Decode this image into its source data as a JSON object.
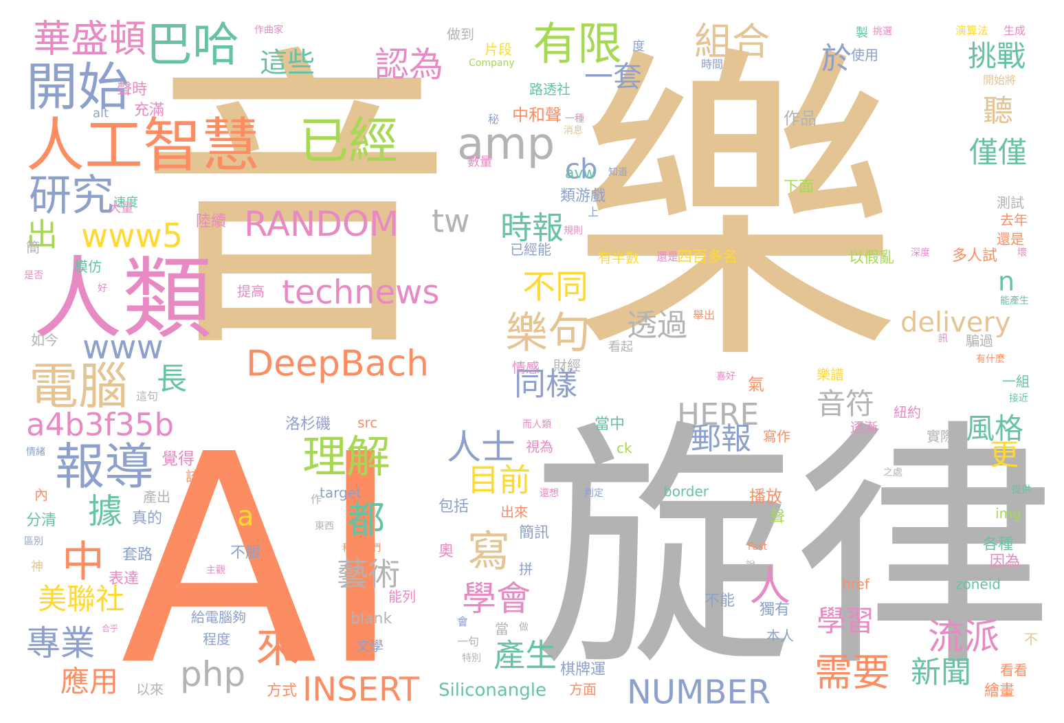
{
  "palette": {
    "tan": "#e5c494",
    "gray": "#b3b3b3",
    "orange": "#fc8d62",
    "pink": "#e78ac3",
    "blue": "#8da0cb",
    "green": "#a6d854",
    "teal": "#66c2a5",
    "yellow": "#ffd92f"
  },
  "words": [
    {
      "text": "音",
      "color": "tan"
    },
    {
      "text": "樂",
      "color": "tan"
    },
    {
      "text": "AI",
      "color": "orange"
    },
    {
      "text": "旋律",
      "color": "gray"
    },
    {
      "text": "人類",
      "color": "pink"
    },
    {
      "text": "人工智慧",
      "color": "orange"
    },
    {
      "text": "開始",
      "color": "blue"
    },
    {
      "text": "巴哈",
      "color": "teal"
    },
    {
      "text": "華盛頓",
      "color": "pink"
    },
    {
      "text": "研究",
      "color": "blue"
    },
    {
      "text": "電腦",
      "color": "tan"
    },
    {
      "text": "報導",
      "color": "blue"
    },
    {
      "text": "a4b3f35b",
      "color": "pink"
    },
    {
      "text": "www",
      "color": "blue"
    },
    {
      "text": "www5",
      "color": "yellow"
    },
    {
      "text": "出",
      "color": "green"
    },
    {
      "text": "已經",
      "color": "green"
    },
    {
      "text": "amp",
      "color": "gray"
    },
    {
      "text": "有限",
      "color": "green"
    },
    {
      "text": "這些",
      "color": "teal"
    },
    {
      "text": "認為",
      "color": "pink"
    },
    {
      "text": "組合",
      "color": "tan"
    },
    {
      "text": "於",
      "color": "blue"
    },
    {
      "text": "挑戰",
      "color": "teal"
    },
    {
      "text": "一套",
      "color": "blue"
    },
    {
      "text": "RANDOM",
      "color": "pink"
    },
    {
      "text": "technews",
      "color": "pink"
    },
    {
      "text": "DeepBach",
      "color": "orange"
    },
    {
      "text": "tw",
      "color": "gray"
    },
    {
      "text": "cb",
      "color": "blue"
    },
    {
      "text": "時報",
      "color": "teal"
    },
    {
      "text": "不同",
      "color": "yellow"
    },
    {
      "text": "樂句",
      "color": "tan"
    },
    {
      "text": "透過",
      "color": "gray"
    },
    {
      "text": "delivery",
      "color": "tan"
    },
    {
      "text": "聽",
      "color": "tan"
    },
    {
      "text": "僅僅",
      "color": "teal"
    },
    {
      "text": "n",
      "color": "teal"
    },
    {
      "text": "同樣",
      "color": "blue"
    },
    {
      "text": "HERE",
      "color": "gray"
    },
    {
      "text": "音符",
      "color": "gray"
    },
    {
      "text": "風格",
      "color": "teal"
    },
    {
      "text": "郵報",
      "color": "blue"
    },
    {
      "text": "理解",
      "color": "green"
    },
    {
      "text": "人士",
      "color": "blue"
    },
    {
      "text": "目前",
      "color": "yellow"
    },
    {
      "text": "寫",
      "color": "tan"
    },
    {
      "text": "都",
      "color": "teal"
    },
    {
      "text": "a",
      "color": "yellow"
    },
    {
      "text": "藝術",
      "color": "gray"
    },
    {
      "text": "學會",
      "color": "pink"
    },
    {
      "text": "人",
      "color": "pink"
    },
    {
      "text": "流派",
      "color": "pink"
    },
    {
      "text": "學習",
      "color": "pink"
    },
    {
      "text": "需要",
      "color": "orange"
    },
    {
      "text": "新聞",
      "color": "teal"
    },
    {
      "text": "更",
      "color": "yellow"
    },
    {
      "text": "中",
      "color": "orange"
    },
    {
      "text": "據",
      "color": "teal"
    },
    {
      "text": "長",
      "color": "teal"
    },
    {
      "text": "美聯社",
      "color": "yellow"
    },
    {
      "text": "專業",
      "color": "blue"
    },
    {
      "text": "應用",
      "color": "orange"
    },
    {
      "text": "來",
      "color": "orange"
    },
    {
      "text": "php",
      "color": "gray"
    },
    {
      "text": "INSERT",
      "color": "orange"
    },
    {
      "text": "產生",
      "color": "teal"
    },
    {
      "text": "NUMBER",
      "color": "blue"
    },
    {
      "text": "Siliconangle",
      "color": "teal"
    },
    {
      "text": "棋牌運",
      "color": "blue"
    },
    {
      "text": "作曲家",
      "color": "pink"
    },
    {
      "text": "做到",
      "color": "gray"
    },
    {
      "text": "片段",
      "color": "yellow"
    },
    {
      "text": "Company",
      "color": "green"
    },
    {
      "text": "度",
      "color": "blue"
    },
    {
      "text": "製",
      "color": "teal"
    },
    {
      "text": "挑選",
      "color": "pink"
    },
    {
      "text": "時間",
      "color": "blue"
    },
    {
      "text": "使用",
      "color": "blue"
    },
    {
      "text": "演算法",
      "color": "yellow"
    },
    {
      "text": "生成",
      "color": "pink"
    },
    {
      "text": "開始將",
      "color": "tan"
    },
    {
      "text": "聲時",
      "color": "pink"
    },
    {
      "text": "充滿",
      "color": "pink"
    },
    {
      "text": "alt",
      "color": "blue"
    },
    {
      "text": "路透社",
      "color": "teal"
    },
    {
      "text": "中和聲",
      "color": "orange"
    },
    {
      "text": "一種",
      "color": "pink"
    },
    {
      "text": "秘",
      "color": "blue"
    },
    {
      "text": "消息",
      "color": "tan"
    },
    {
      "text": "作品",
      "color": "gray"
    },
    {
      "text": "數量",
      "color": "pink"
    },
    {
      "text": "知道",
      "color": "blue"
    },
    {
      "text": "avw",
      "color": "teal"
    },
    {
      "text": "類游戲",
      "color": "blue"
    },
    {
      "text": "速度",
      "color": "teal"
    },
    {
      "text": "大量",
      "color": "pink"
    },
    {
      "text": "陸續",
      "color": "pink"
    },
    {
      "text": "上",
      "color": "blue"
    },
    {
      "text": "規則",
      "color": "pink"
    },
    {
      "text": "下面",
      "color": "green"
    },
    {
      "text": "測試",
      "color": "gray"
    },
    {
      "text": "去年",
      "color": "orange"
    },
    {
      "text": "還是",
      "color": "orange"
    },
    {
      "text": "有半數",
      "color": "yellow"
    },
    {
      "text": "還是",
      "color": "pink"
    },
    {
      "text": "四百多名",
      "color": "yellow"
    },
    {
      "text": "以假亂",
      "color": "green"
    },
    {
      "text": "深度",
      "color": "pink"
    },
    {
      "text": "多人試",
      "color": "orange"
    },
    {
      "text": "壞",
      "color": "pink"
    },
    {
      "text": "已經能",
      "color": "blue"
    },
    {
      "text": "模仿",
      "color": "teal"
    },
    {
      "text": "簡",
      "color": "gray"
    },
    {
      "text": "是否",
      "color": "pink"
    },
    {
      "text": "好",
      "color": "pink"
    },
    {
      "text": "提高",
      "color": "pink"
    },
    {
      "text": "如今",
      "color": "gray"
    },
    {
      "text": "舉出",
      "color": "orange"
    },
    {
      "text": "能產生",
      "color": "teal"
    },
    {
      "text": "騙過",
      "color": "gray"
    },
    {
      "text": "看起",
      "color": "gray"
    },
    {
      "text": "訊",
      "color": "pink"
    },
    {
      "text": "有什麼",
      "color": "orange"
    },
    {
      "text": "情感",
      "color": "pink"
    },
    {
      "text": "財經",
      "color": "gray"
    },
    {
      "text": "氣",
      "color": "orange"
    },
    {
      "text": "喜好",
      "color": "pink"
    },
    {
      "text": "樂譜",
      "color": "yellow"
    },
    {
      "text": "一組",
      "color": "teal"
    },
    {
      "text": "接近",
      "color": "teal"
    },
    {
      "text": "這句",
      "color": "gray"
    },
    {
      "text": "src",
      "color": "orange"
    },
    {
      "text": "洛杉磯",
      "color": "blue"
    },
    {
      "text": "而人類",
      "color": "pink"
    },
    {
      "text": "當中",
      "color": "teal"
    },
    {
      "text": "紐約",
      "color": "pink"
    },
    {
      "text": "寫作",
      "color": "orange"
    },
    {
      "text": "逐漸",
      "color": "pink"
    },
    {
      "text": "實際",
      "color": "gray"
    },
    {
      "text": "情緒",
      "color": "blue"
    },
    {
      "text": "覺得",
      "color": "pink"
    },
    {
      "text": "該",
      "color": "orange"
    },
    {
      "text": "視為",
      "color": "pink"
    },
    {
      "text": "ck",
      "color": "green"
    },
    {
      "text": "內",
      "color": "orange"
    },
    {
      "text": "產出",
      "color": "gray"
    },
    {
      "text": "作",
      "color": "gray"
    },
    {
      "text": "target",
      "color": "blue"
    },
    {
      "text": "還想",
      "color": "pink"
    },
    {
      "text": "判定",
      "color": "blue"
    },
    {
      "text": "border",
      "color": "teal"
    },
    {
      "text": "播放",
      "color": "orange"
    },
    {
      "text": "之處",
      "color": "gray"
    },
    {
      "text": "提供",
      "color": "teal"
    },
    {
      "text": "分清",
      "color": "teal"
    },
    {
      "text": "真的",
      "color": "blue"
    },
    {
      "text": "包括",
      "color": "blue"
    },
    {
      "text": "出來",
      "color": "orange"
    },
    {
      "text": "東西",
      "color": "gray"
    },
    {
      "text": "聲",
      "color": "green"
    },
    {
      "text": "img",
      "color": "green"
    },
    {
      "text": "區別",
      "color": "blue"
    },
    {
      "text": "簡訊",
      "color": "blue"
    },
    {
      "text": "套路",
      "color": "blue"
    },
    {
      "text": "不服",
      "color": "blue"
    },
    {
      "text": "科學家們",
      "color": "orange"
    },
    {
      "text": "奧",
      "color": "pink"
    },
    {
      "text": "Fast",
      "color": "orange"
    },
    {
      "text": "各種",
      "color": "teal"
    },
    {
      "text": "神",
      "color": "tan"
    },
    {
      "text": "表達",
      "color": "pink"
    },
    {
      "text": "主觀",
      "color": "pink"
    },
    {
      "text": "說",
      "color": "gray"
    },
    {
      "text": "拼",
      "color": "blue"
    },
    {
      "text": "因為",
      "color": "pink"
    },
    {
      "text": "href",
      "color": "orange"
    },
    {
      "text": "zoneid",
      "color": "teal"
    },
    {
      "text": "能列",
      "color": "pink"
    },
    {
      "text": "blank",
      "color": "gray"
    },
    {
      "text": "不能",
      "color": "blue"
    },
    {
      "text": "獨有",
      "color": "blue"
    },
    {
      "text": "合乎",
      "color": "pink"
    },
    {
      "text": "給電腦夠",
      "color": "blue"
    },
    {
      "text": "會",
      "color": "blue"
    },
    {
      "text": "當",
      "color": "gray"
    },
    {
      "text": "做",
      "color": "gray"
    },
    {
      "text": "程度",
      "color": "blue"
    },
    {
      "text": "文學",
      "color": "blue"
    },
    {
      "text": "一句",
      "color": "gray"
    },
    {
      "text": "本人",
      "color": "blue"
    },
    {
      "text": "不",
      "color": "tan"
    },
    {
      "text": "特別",
      "color": "gray"
    },
    {
      "text": "看看",
      "color": "orange"
    },
    {
      "text": "以來",
      "color": "gray"
    },
    {
      "text": "方式",
      "color": "orange"
    },
    {
      "text": "方面",
      "color": "orange"
    },
    {
      "text": "繪畫",
      "color": "orange"
    }
  ]
}
